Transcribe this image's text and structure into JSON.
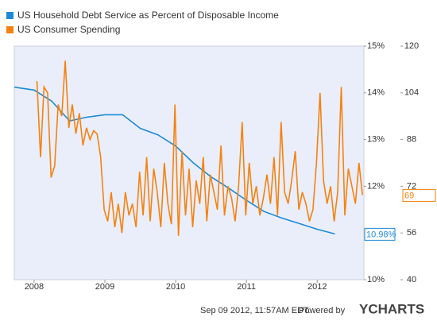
{
  "chart_data": {
    "type": "line",
    "xlim": [
      2007.72,
      2012.66
    ],
    "xticks": [
      2008,
      2009,
      2010,
      2011,
      2012
    ],
    "ylim": [
      10,
      15
    ],
    "yticks": [
      {
        "value": 10,
        "label": "10%"
      },
      {
        "value": 12,
        "label": "12%"
      },
      {
        "value": 13,
        "label": "13%"
      },
      {
        "value": 14,
        "label": "14%"
      },
      {
        "value": 15,
        "label": "15%"
      }
    ],
    "y2lim": [
      40,
      120
    ],
    "y2ticks": [
      40,
      56,
      72,
      88,
      104,
      120
    ],
    "legend": "top-left",
    "series": [
      {
        "name": "US Household Debt Service as Percent of Disposable Income",
        "color": "#1d8ad6",
        "axis": "y",
        "x": [
          2007.72,
          2008.0,
          2008.25,
          2008.5,
          2008.75,
          2009.0,
          2009.25,
          2009.5,
          2009.75,
          2010.0,
          2010.25,
          2010.5,
          2010.75,
          2011.0,
          2011.25,
          2011.5,
          2011.75,
          2012.0,
          2012.25
        ],
        "values": [
          14.12,
          14.06,
          13.82,
          13.4,
          13.48,
          13.53,
          13.53,
          13.24,
          13.1,
          12.86,
          12.5,
          12.2,
          11.96,
          11.7,
          11.46,
          11.32,
          11.2,
          11.08,
          10.98
        ],
        "value_labels": [
          null,
          null,
          null,
          null,
          null,
          null,
          null,
          null,
          null,
          null,
          null,
          null,
          null,
          null,
          null,
          null,
          null,
          null,
          "10.98%"
        ]
      },
      {
        "name": "US Consumer Spending",
        "color": "#f5820f",
        "axis": "y2",
        "x": [
          2008.04,
          2008.09,
          2008.14,
          2008.19,
          2008.24,
          2008.29,
          2008.34,
          2008.39,
          2008.44,
          2008.49,
          2008.54,
          2008.59,
          2008.64,
          2008.69,
          2008.74,
          2008.79,
          2008.84,
          2008.89,
          2008.94,
          2008.99,
          2009.04,
          2009.09,
          2009.14,
          2009.19,
          2009.24,
          2009.29,
          2009.34,
          2009.39,
          2009.44,
          2009.49,
          2009.54,
          2009.59,
          2009.64,
          2009.69,
          2009.74,
          2009.79,
          2009.84,
          2009.89,
          2009.94,
          2009.99,
          2010.04,
          2010.09,
          2010.14,
          2010.19,
          2010.24,
          2010.29,
          2010.34,
          2010.39,
          2010.44,
          2010.49,
          2010.54,
          2010.59,
          2010.64,
          2010.69,
          2010.74,
          2010.79,
          2010.84,
          2010.89,
          2010.94,
          2010.99,
          2011.04,
          2011.09,
          2011.14,
          2011.19,
          2011.24,
          2011.29,
          2011.34,
          2011.39,
          2011.44,
          2011.49,
          2011.54,
          2011.59,
          2011.64,
          2011.69,
          2011.74,
          2011.79,
          2011.84,
          2011.89,
          2011.94,
          2011.99,
          2012.04,
          2012.09,
          2012.14,
          2012.19,
          2012.24,
          2012.29,
          2012.34,
          2012.39,
          2012.44,
          2012.49,
          2012.54,
          2012.59,
          2012.64
        ],
        "values": [
          108,
          82,
          106,
          104,
          75,
          79,
          100,
          96,
          115,
          92,
          100,
          90,
          97,
          86,
          92,
          88,
          91,
          90,
          82,
          64,
          60,
          70,
          58,
          66,
          56,
          70,
          62,
          66,
          58,
          77,
          62,
          82,
          60,
          78,
          70,
          58,
          80,
          66,
          59,
          100,
          55,
          84,
          62,
          78,
          58,
          74,
          66,
          82,
          60,
          76,
          70,
          64,
          86,
          62,
          72,
          68,
          60,
          72,
          94,
          62,
          80,
          66,
          72,
          62,
          68,
          76,
          66,
          82,
          62,
          94,
          70,
          66,
          74,
          84,
          64,
          70,
          66,
          60,
          64,
          80,
          104,
          74,
          66,
          72,
          60,
          70,
          106,
          62,
          78,
          72,
          66,
          80,
          69
        ]
      }
    ]
  },
  "footer": {
    "timestamp": "Sep 09 2012, 11:57AM EDT.",
    "powered_by": "Powered by",
    "brand": "YCHARTS"
  }
}
